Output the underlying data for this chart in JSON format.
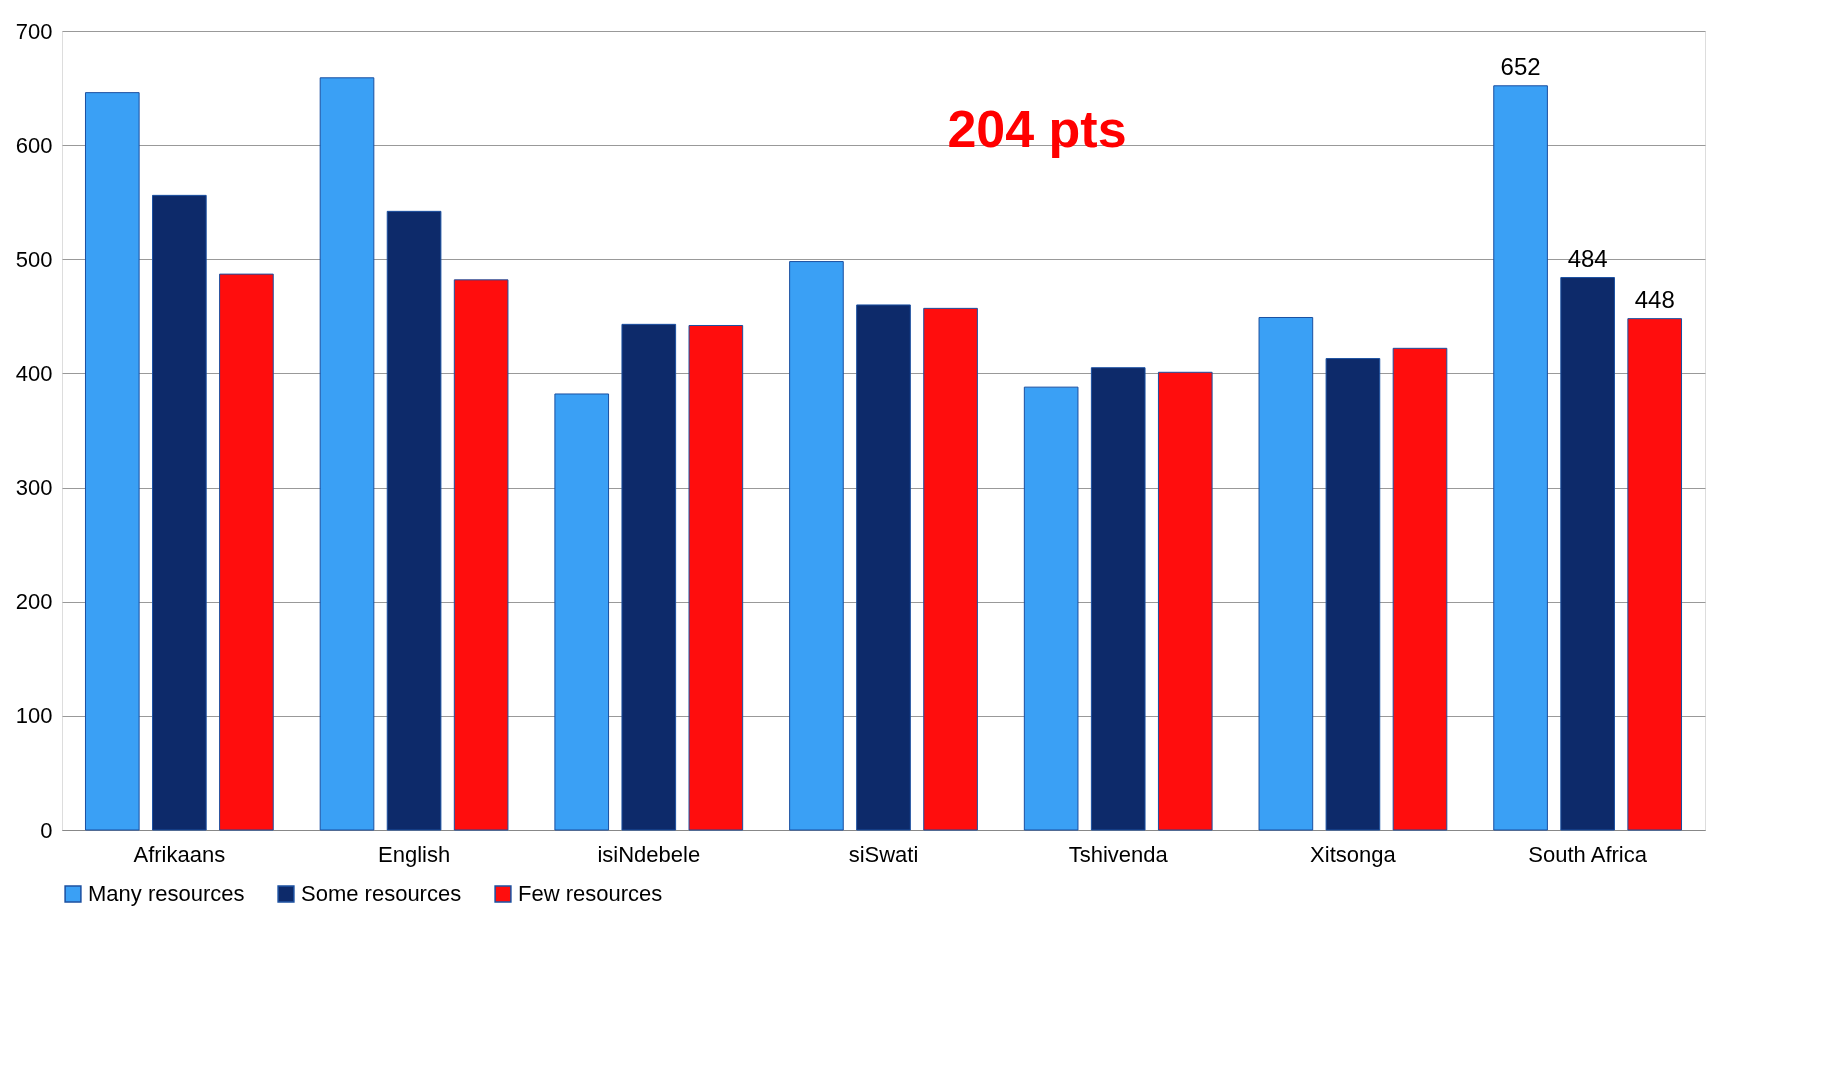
{
  "chart_data": {
    "type": "bar",
    "categories": [
      "Afrikaans",
      "English",
      "isiNdebele",
      "siSwati",
      "Tshivenda",
      "Xitsonga",
      "South Africa"
    ],
    "series": [
      {
        "name": "Many resources",
        "color": "#3aa0f5",
        "values": [
          646,
          659,
          382,
          498,
          388,
          449,
          652
        ],
        "value_labels": [
          null,
          null,
          null,
          null,
          null,
          null,
          "652"
        ]
      },
      {
        "name": "Some resources",
        "color": "#0d2a6a",
        "values": [
          556,
          542,
          443,
          460,
          405,
          413,
          484
        ],
        "value_labels": [
          null,
          null,
          null,
          null,
          null,
          null,
          "484"
        ]
      },
      {
        "name": "Few resources",
        "color": "#ff0d0d",
        "values": [
          487,
          482,
          442,
          457,
          401,
          422,
          448
        ],
        "value_labels": [
          null,
          null,
          null,
          null,
          null,
          null,
          "448"
        ]
      }
    ],
    "annotations": [
      "204 pts"
    ],
    "ylim": [
      0,
      700
    ],
    "yticks": [
      0,
      100,
      200,
      300,
      400,
      500,
      600,
      700
    ],
    "grid": "y",
    "legend": "bottom"
  }
}
